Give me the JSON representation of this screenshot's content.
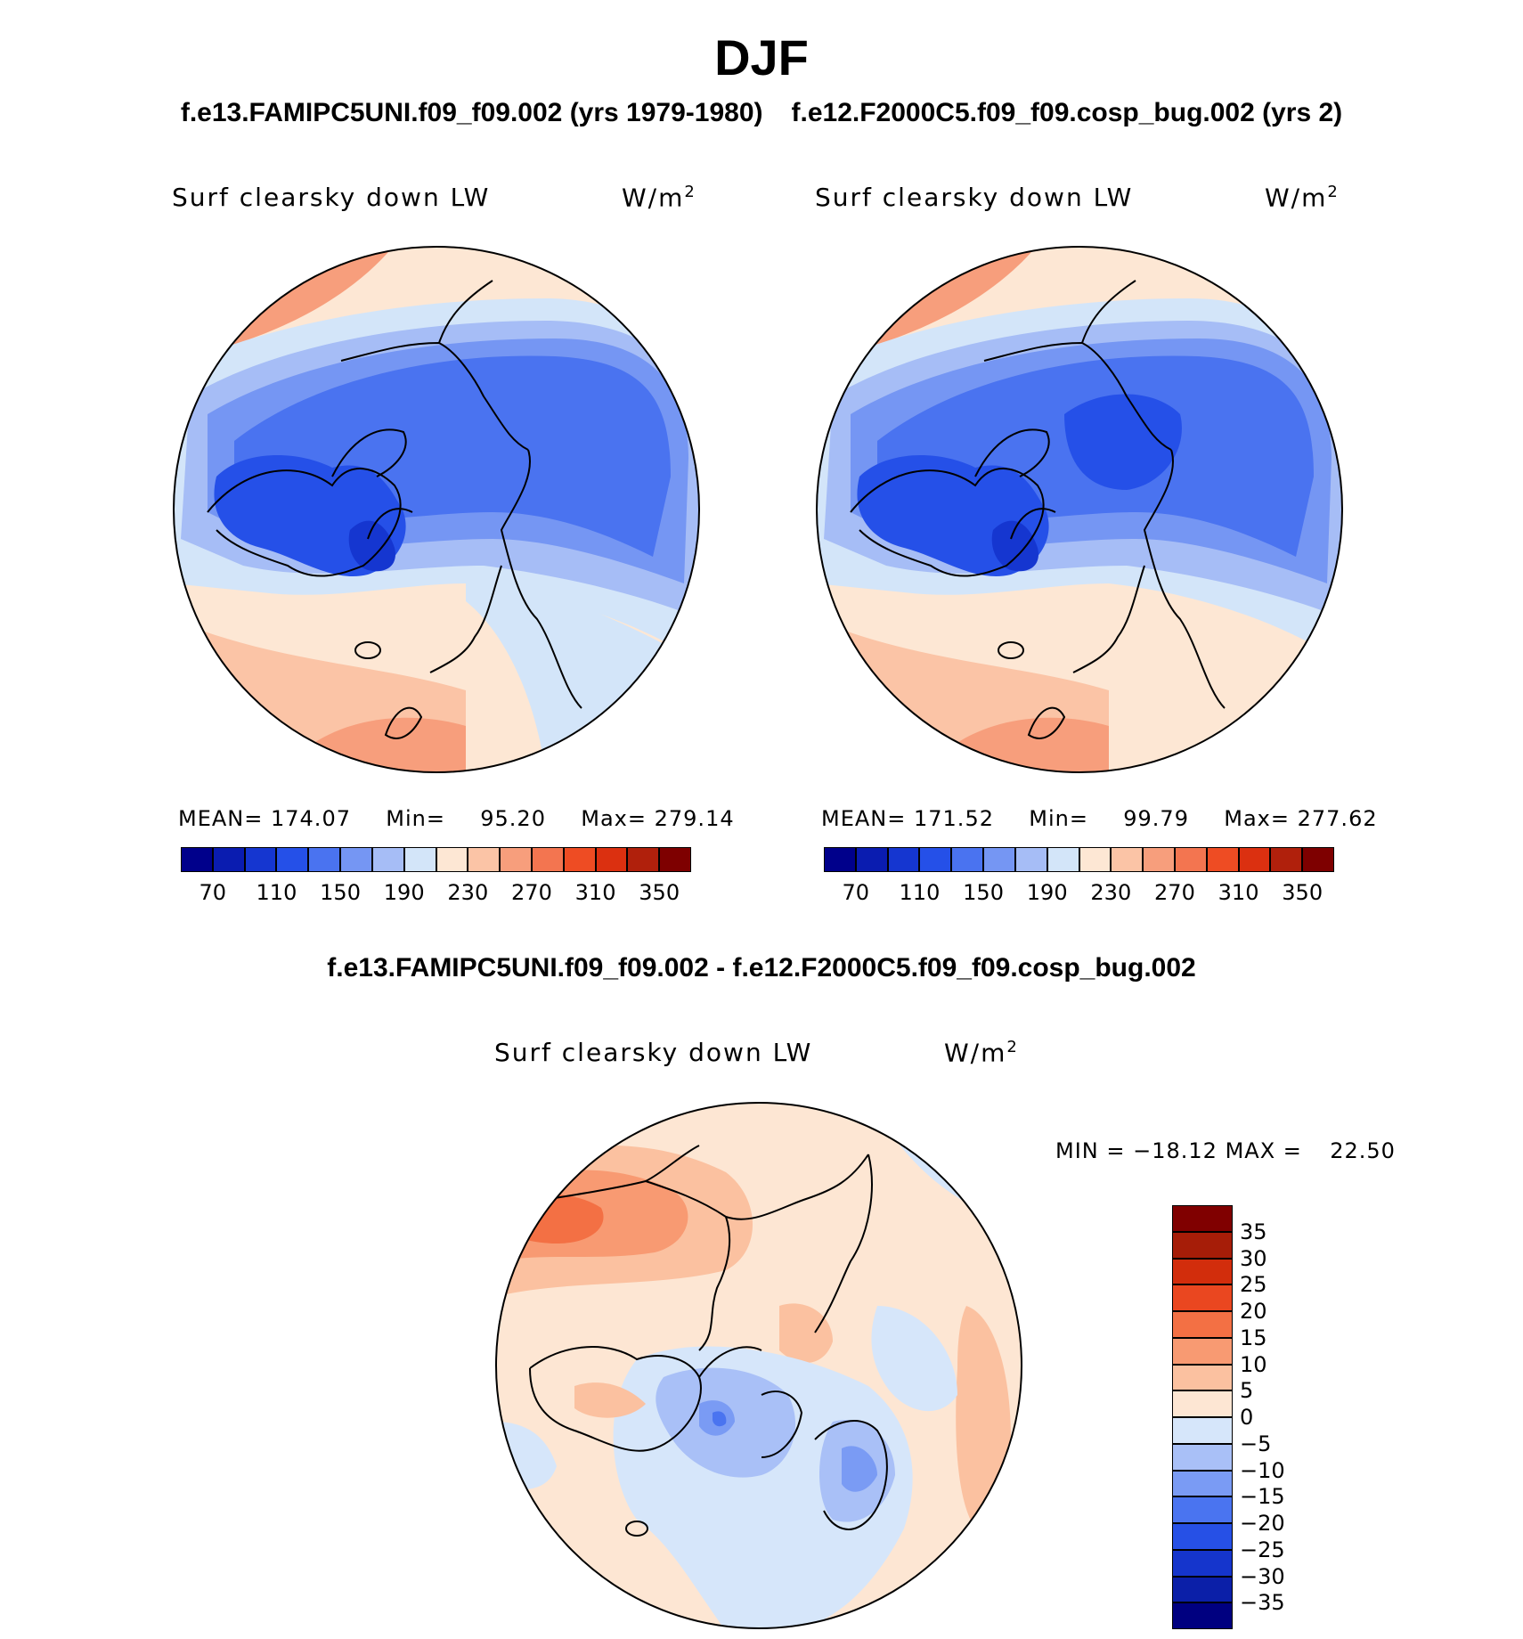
{
  "season": "DJF",
  "case_titles": {
    "test": "f.e13.FAMIPC5UNI.f09_f09.002 (yrs 1979-1980)",
    "control": "f.e12.F2000C5.f09_f09.cosp_bug.002 (yrs 2)"
  },
  "diff_title": "f.e13.FAMIPC5UNI.f09_f09.002 - f.e12.F2000C5.f09_f09.cosp_bug.002",
  "panels": [
    {
      "variable": "Surf clearsky down LW",
      "units_base": "W/m",
      "units_exp": "2",
      "mean_label": "MEAN=",
      "mean": "174.07",
      "min_label": "Min=",
      "min": "95.20",
      "max_label": "Max=",
      "max": "279.14"
    },
    {
      "variable": "Surf clearsky down LW",
      "units_base": "W/m",
      "units_exp": "2",
      "mean_label": "MEAN=",
      "mean": "171.52",
      "min_label": "Min=",
      "min": "99.79",
      "max_label": "Max=",
      "max": "277.62"
    }
  ],
  "diff_panel": {
    "variable": "Surf clearsky down LW",
    "units_base": "W/m",
    "units_exp": "2",
    "min_label": "MIN =",
    "min": "−18.12",
    "max_label": "MAX =",
    "max": "22.50"
  },
  "abs_colorbar": {
    "colors": [
      "#00008b",
      "#0a1cb0",
      "#1536d0",
      "#2550e8",
      "#4a73f0",
      "#7596f3",
      "#a6bdf6",
      "#d3e5f9",
      "#fde7d4",
      "#fbc4a6",
      "#f79e7c",
      "#f37550",
      "#ee4c23",
      "#db3010",
      "#b0200c",
      "#7e0000"
    ],
    "labels": [
      "70",
      "110",
      "150",
      "190",
      "230",
      "270",
      "310",
      "350"
    ]
  },
  "diff_colorbar": {
    "colors": [
      "#000080",
      "#0b1fa8",
      "#1535cc",
      "#2650e6",
      "#4a74f0",
      "#7a9bf4",
      "#a9c0f7",
      "#d6e6fa",
      "#fde6d3",
      "#fbc1a0",
      "#f89a72",
      "#f37044",
      "#ea4720",
      "#d22d0c",
      "#a61d08",
      "#800000"
    ],
    "labels": [
      "−35",
      "−30",
      "−25",
      "−20",
      "−15",
      "−10",
      "−5",
      "0",
      "5",
      "10",
      "15",
      "20",
      "25",
      "30",
      "35"
    ]
  },
  "region_colors": {
    "land": "#cfe0fa"
  }
}
